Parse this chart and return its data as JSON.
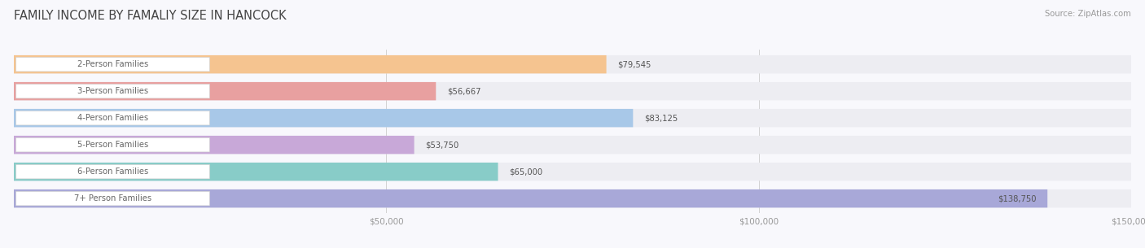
{
  "title": "FAMILY INCOME BY FAMALIY SIZE IN HANCOCK",
  "source": "Source: ZipAtlas.com",
  "categories": [
    "2-Person Families",
    "3-Person Families",
    "4-Person Families",
    "5-Person Families",
    "6-Person Families",
    "7+ Person Families"
  ],
  "values": [
    79545,
    56667,
    83125,
    53750,
    65000,
    138750
  ],
  "bar_colors": [
    "#f5c490",
    "#e8a0a0",
    "#a8c8e8",
    "#c8a8d8",
    "#88ccc8",
    "#a8a8d8"
  ],
  "bar_bg_color": "#ededf2",
  "xlim": [
    0,
    150000
  ],
  "xticks": [
    50000,
    100000,
    150000
  ],
  "xtick_labels": [
    "$50,000",
    "$100,000",
    "$150,000"
  ],
  "title_fontsize": 10.5,
  "label_fontsize": 7.2,
  "value_fontsize": 7.2,
  "source_fontsize": 7.2,
  "background_color": "#f8f8fc"
}
